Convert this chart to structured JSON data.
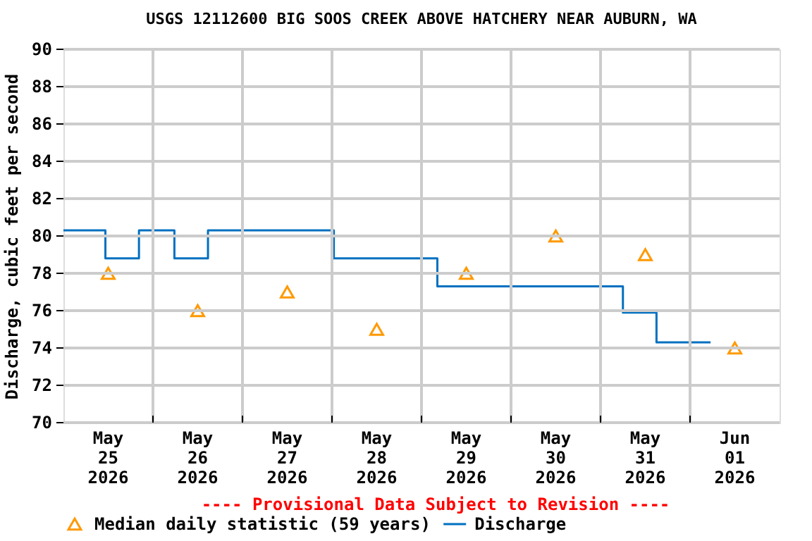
{
  "chart_data": {
    "type": "step",
    "title": "USGS 12112600 BIG SOOS CREEK ABOVE HATCHERY NEAR AUBURN, WA",
    "ylabel": "Discharge, cubic feet per second",
    "annotations": [
      "---- Provisional Data Subject to Revision ----"
    ],
    "xlim": [
      "2026-05-25T00:00",
      "2026-06-02T00:00"
    ],
    "xticks": [
      {
        "value": "2026-05-25T12:00",
        "label": "May\n25\n2026"
      },
      {
        "value": "2026-05-26T12:00",
        "label": "May\n26\n2026"
      },
      {
        "value": "2026-05-27T12:00",
        "label": "May\n27\n2026"
      },
      {
        "value": "2026-05-28T12:00",
        "label": "May\n28\n2026"
      },
      {
        "value": "2026-05-29T12:00",
        "label": "May\n29\n2026"
      },
      {
        "value": "2026-05-30T12:00",
        "label": "May\n30\n2026"
      },
      {
        "value": "2026-05-31T12:00",
        "label": "May\n31\n2026"
      },
      {
        "value": "2026-06-01T12:00",
        "label": "Jun\n01\n2026"
      },
      {
        "value": "2026-05-26T00:00",
        "label": null
      },
      {
        "value": "2026-05-27T00:00",
        "label": null
      },
      {
        "value": "2026-05-28T00:00",
        "label": null
      },
      {
        "value": "2026-05-29T00:00",
        "label": null
      },
      {
        "value": "2026-05-30T00:00",
        "label": null
      },
      {
        "value": "2026-05-31T00:00",
        "label": null
      },
      {
        "value": "2026-06-01T00:00",
        "label": null
      }
    ],
    "ylim": [
      70,
      90
    ],
    "yticks": [
      70,
      72,
      74,
      76,
      78,
      80,
      82,
      84,
      86,
      88,
      90
    ],
    "grid": true,
    "legend": "bottom left",
    "series": [
      {
        "name": "Median daily statistic (59 years)",
        "type": "scatter",
        "marker": "triangle",
        "color": "#ff9900",
        "x": [
          "2026-05-25T12:00",
          "2026-05-26T12:00",
          "2026-05-27T12:00",
          "2026-05-28T12:00",
          "2026-05-29T12:00",
          "2026-05-30T12:00",
          "2026-05-31T12:00",
          "2026-06-01T12:00"
        ],
        "values": [
          78,
          76,
          77,
          75,
          78,
          80,
          79,
          74
        ]
      },
      {
        "name": "Discharge",
        "color": "#0070c0",
        "x": [
          "2026-05-25T00:00",
          "2026-05-25T11:15",
          "2026-05-25T20:15",
          "2026-05-26T05:45",
          "2026-05-26T14:45",
          "2026-05-28T00:30",
          "2026-05-29T04:15",
          "2026-05-31T06:00",
          "2026-05-31T15:00",
          "2026-06-01T05:30"
        ],
        "values": [
          80.3,
          78.8,
          80.3,
          78.8,
          80.3,
          78.8,
          77.3,
          75.9,
          74.3,
          74.3
        ]
      }
    ]
  }
}
